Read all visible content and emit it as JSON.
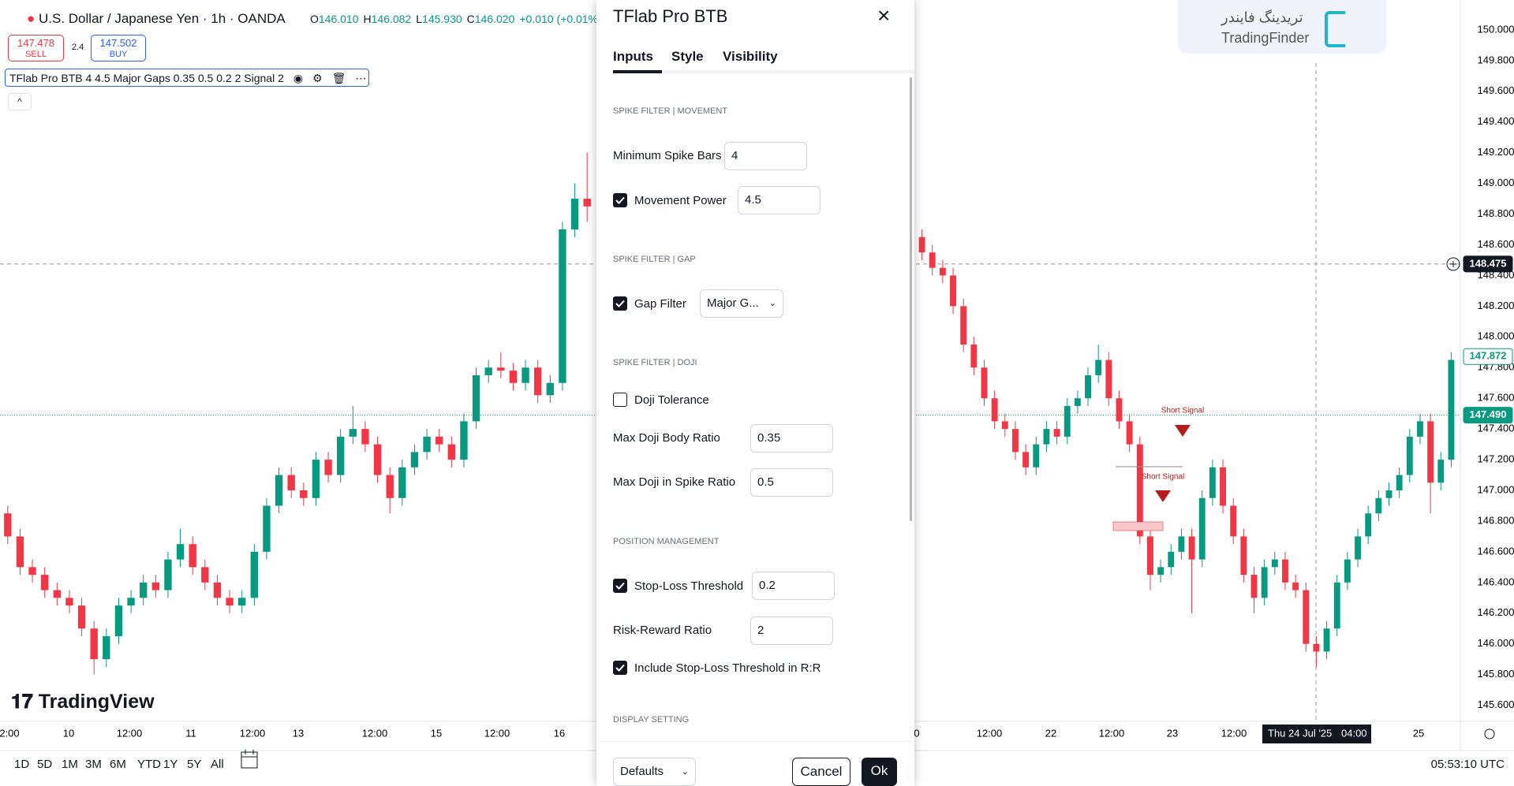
{
  "header": {
    "symbol": "U.S. Dollar / Japanese Yen · 1h · OANDA",
    "ohlc": [
      {
        "k": "O",
        "v": "146.010"
      },
      {
        "k": "H",
        "v": "146.082"
      },
      {
        "k": "L",
        "v": "145.930"
      },
      {
        "k": "C",
        "v": "146.020"
      }
    ],
    "change": "+0.010 (+0.01%)",
    "sell_price": "147.478",
    "sell_label": "SELL",
    "spread": "2.4",
    "buy_price": "147.502",
    "buy_label": "BUY",
    "indicator": "TFlab Pro BTB 4 4.5 Major Gaps 0.35 0.5 0.2 2 Signal 2"
  },
  "watermark": "TradingView",
  "logo": {
    "name": "TradingFinder",
    "name_fa": "تریدینگ فایندر"
  },
  "chart": {
    "price_ticks": [
      {
        "value": 150,
        "label": "150.000"
      },
      {
        "value": 149.8,
        "label": "149.800"
      },
      {
        "value": 149.6,
        "label": "149.600"
      },
      {
        "value": 149.4,
        "label": "149.400"
      },
      {
        "value": 149.2,
        "label": "149.200"
      },
      {
        "value": 149,
        "label": "149.000"
      },
      {
        "value": 148.8,
        "label": "148.800"
      },
      {
        "value": 148.6,
        "label": "148.600"
      },
      {
        "value": 148.4,
        "label": "148.400"
      },
      {
        "value": 148.2,
        "label": "148.200"
      },
      {
        "value": 148,
        "label": "148.000"
      },
      {
        "value": 147.8,
        "label": "147.800"
      },
      {
        "value": 147.6,
        "label": "147.600"
      },
      {
        "value": 147.4,
        "label": "147.400"
      },
      {
        "value": 147.2,
        "label": "147.200"
      },
      {
        "value": 147,
        "label": "147.000"
      },
      {
        "value": 146.8,
        "label": "146.800"
      },
      {
        "value": 146.6,
        "label": "146.600"
      },
      {
        "value": 146.4,
        "label": "146.400"
      },
      {
        "value": 146.2,
        "label": "146.200"
      },
      {
        "value": 146,
        "label": "146.000"
      },
      {
        "value": 145.8,
        "label": "145.800"
      },
      {
        "value": 145.6,
        "label": "145.600"
      }
    ],
    "crosshair_price": {
      "value": 148.475,
      "label": "148.475"
    },
    "ask_price": {
      "value": 147.872,
      "label": "147.872"
    },
    "last_price": {
      "value": 147.49,
      "label": "147.490"
    },
    "time_labels_left": [
      "2:00",
      "10",
      "12:00",
      "11",
      "12:00",
      "13",
      "12:00",
      "15",
      "12:00",
      "16"
    ],
    "time_labels_right": [
      "0",
      "12:00",
      "22",
      "12:00",
      "23",
      "12:00",
      "25"
    ],
    "crosshair_time": {
      "date": "Thu 24 Jul '25",
      "time": "04:00"
    },
    "signals": [
      "Short Signal",
      "Short Signal"
    ],
    "up_color": "#089981",
    "down_color": "#f23645",
    "left_candles": [
      [
        146.85,
        146.9,
        146.65,
        146.7
      ],
      [
        146.7,
        146.75,
        146.45,
        146.5
      ],
      [
        146.5,
        146.55,
        146.4,
        146.45
      ],
      [
        146.45,
        146.5,
        146.3,
        146.35
      ],
      [
        146.35,
        146.4,
        146.25,
        146.3
      ],
      [
        146.3,
        146.35,
        146.2,
        146.25
      ],
      [
        146.25,
        146.3,
        146.05,
        146.1
      ],
      [
        146.1,
        146.15,
        145.8,
        145.9
      ],
      [
        145.9,
        146.1,
        145.85,
        146.05
      ],
      [
        146.05,
        146.3,
        146.0,
        146.25
      ],
      [
        146.25,
        146.35,
        146.2,
        146.3
      ],
      [
        146.3,
        146.45,
        146.25,
        146.4
      ],
      [
        146.4,
        146.45,
        146.3,
        146.35
      ],
      [
        146.35,
        146.6,
        146.3,
        146.55
      ],
      [
        146.55,
        146.75,
        146.5,
        146.65
      ],
      [
        146.65,
        146.7,
        146.45,
        146.5
      ],
      [
        146.5,
        146.55,
        146.35,
        146.4
      ],
      [
        146.4,
        146.45,
        146.25,
        146.3
      ],
      [
        146.3,
        146.35,
        146.2,
        146.25
      ],
      [
        146.25,
        146.35,
        146.2,
        146.3
      ],
      [
        146.3,
        146.65,
        146.25,
        146.6
      ],
      [
        146.6,
        146.95,
        146.55,
        146.9
      ],
      [
        146.9,
        147.15,
        146.85,
        147.1
      ],
      [
        147.1,
        147.15,
        146.95,
        147.0
      ],
      [
        147.0,
        147.05,
        146.9,
        146.95
      ],
      [
        146.95,
        147.25,
        146.9,
        147.2
      ],
      [
        147.2,
        147.25,
        147.05,
        147.1
      ],
      [
        147.1,
        147.4,
        147.05,
        147.35
      ],
      [
        147.35,
        147.55,
        147.3,
        147.4
      ],
      [
        147.4,
        147.45,
        147.25,
        147.3
      ],
      [
        147.3,
        147.35,
        147.05,
        147.1
      ],
      [
        147.1,
        147.15,
        146.85,
        146.95
      ],
      [
        146.95,
        147.2,
        146.9,
        147.15
      ],
      [
        147.15,
        147.3,
        147.1,
        147.25
      ],
      [
        147.25,
        147.4,
        147.2,
        147.35
      ],
      [
        147.35,
        147.4,
        147.25,
        147.3
      ],
      [
        147.3,
        147.35,
        147.15,
        147.2
      ],
      [
        147.2,
        147.5,
        147.15,
        147.45
      ],
      [
        147.45,
        147.8,
        147.4,
        147.75
      ],
      [
        147.75,
        147.85,
        147.7,
        147.8
      ],
      [
        147.8,
        147.9,
        147.73,
        147.78
      ],
      [
        147.78,
        147.83,
        147.65,
        147.7
      ],
      [
        147.7,
        147.85,
        147.65,
        147.8
      ],
      [
        147.8,
        147.85,
        147.57,
        147.62
      ],
      [
        147.62,
        147.75,
        147.57,
        147.7
      ],
      [
        147.7,
        148.75,
        147.65,
        148.7
      ],
      [
        148.7,
        149.0,
        148.65,
        148.9
      ],
      [
        148.9,
        149.2,
        148.75,
        148.85
      ]
    ],
    "right_candles": [
      [
        148.65,
        148.7,
        148.5,
        148.55
      ],
      [
        148.55,
        148.6,
        148.4,
        148.45
      ],
      [
        148.45,
        148.5,
        148.35,
        148.4
      ],
      [
        148.4,
        148.45,
        148.15,
        148.2
      ],
      [
        148.2,
        148.25,
        147.9,
        147.95
      ],
      [
        147.95,
        148.0,
        147.75,
        147.8
      ],
      [
        147.8,
        147.85,
        147.55,
        147.6
      ],
      [
        147.6,
        147.65,
        147.4,
        147.45
      ],
      [
        147.45,
        147.5,
        147.35,
        147.4
      ],
      [
        147.4,
        147.45,
        147.2,
        147.25
      ],
      [
        147.25,
        147.3,
        147.1,
        147.15
      ],
      [
        147.15,
        147.35,
        147.1,
        147.3
      ],
      [
        147.3,
        147.45,
        147.25,
        147.4
      ],
      [
        147.4,
        147.45,
        147.3,
        147.35
      ],
      [
        147.35,
        147.6,
        147.3,
        147.55
      ],
      [
        147.55,
        147.65,
        147.5,
        147.6
      ],
      [
        147.6,
        147.8,
        147.55,
        147.75
      ],
      [
        147.75,
        147.95,
        147.7,
        147.85
      ],
      [
        147.85,
        147.9,
        147.55,
        147.6
      ],
      [
        147.6,
        147.65,
        147.4,
        147.45
      ],
      [
        147.45,
        147.5,
        147.25,
        147.3
      ],
      [
        147.3,
        147.35,
        146.65,
        146.7
      ],
      [
        146.7,
        146.75,
        146.35,
        146.45
      ],
      [
        146.45,
        146.55,
        146.4,
        146.5
      ],
      [
        146.5,
        146.65,
        146.45,
        146.6
      ],
      [
        146.6,
        146.75,
        146.55,
        146.7
      ],
      [
        146.7,
        146.75,
        146.2,
        146.55
      ],
      [
        146.55,
        147.0,
        146.5,
        146.95
      ],
      [
        146.95,
        147.2,
        146.9,
        147.15
      ],
      [
        147.15,
        147.2,
        146.85,
        146.9
      ],
      [
        146.9,
        146.95,
        146.65,
        146.7
      ],
      [
        146.7,
        146.75,
        146.4,
        146.45
      ],
      [
        146.45,
        146.5,
        146.2,
        146.3
      ],
      [
        146.3,
        146.55,
        146.25,
        146.5
      ],
      [
        146.5,
        146.6,
        146.45,
        146.55
      ],
      [
        146.55,
        146.6,
        146.35,
        146.4
      ],
      [
        146.4,
        146.45,
        146.3,
        146.35
      ],
      [
        146.35,
        146.4,
        145.95,
        146.0
      ],
      [
        146.0,
        146.05,
        145.85,
        145.95
      ],
      [
        145.95,
        146.15,
        145.9,
        146.1
      ],
      [
        146.1,
        146.45,
        146.05,
        146.4
      ],
      [
        146.4,
        146.6,
        146.35,
        146.55
      ],
      [
        146.55,
        146.75,
        146.5,
        146.7
      ],
      [
        146.7,
        146.9,
        146.65,
        146.85
      ],
      [
        146.85,
        147.0,
        146.8,
        146.95
      ],
      [
        146.95,
        147.05,
        146.9,
        147.0
      ],
      [
        147.0,
        147.15,
        146.95,
        147.1
      ],
      [
        147.1,
        147.4,
        147.05,
        147.35
      ],
      [
        147.35,
        147.5,
        147.3,
        147.45
      ],
      [
        147.45,
        147.5,
        146.85,
        147.05
      ],
      [
        147.05,
        147.25,
        147.0,
        147.2
      ],
      [
        147.2,
        147.9,
        147.15,
        147.85
      ]
    ]
  },
  "toolbar": {
    "ranges": [
      "1D",
      "5D",
      "1M",
      "3M",
      "6M",
      "YTD",
      "1Y",
      "5Y",
      "All"
    ],
    "clock": "05:53:10 UTC"
  },
  "dialog": {
    "title": "TFlab Pro BTB",
    "tabs": [
      "Inputs",
      "Style",
      "Visibility"
    ],
    "sections": [
      {
        "heading": "SPIKE FILTER | MOVEMENT",
        "fields": [
          {
            "label": "Minimum Spike Bars",
            "value": "4"
          },
          {
            "label": "Movement Power",
            "value": "4.5",
            "checked": true
          }
        ]
      },
      {
        "heading": "SPIKE FILTER | GAP",
        "fields": [
          {
            "label": "Gap Filter",
            "value": "Major G...",
            "checked": true
          }
        ]
      },
      {
        "heading": "SPIKE FILTER | DOJI",
        "fields": [
          {
            "label": "Doji Tolerance",
            "checked": false
          },
          {
            "label": "Max Doji Body Ratio",
            "value": "0.35"
          },
          {
            "label": "Max Doji in Spike Ratio",
            "value": "0.5"
          }
        ]
      },
      {
        "heading": "POSITION MANAGEMENT",
        "fields": [
          {
            "label": "Stop-Loss Threshold",
            "value": "0.2",
            "checked": true
          },
          {
            "label": "Risk-Reward Ratio",
            "value": "2"
          },
          {
            "label": "Include Stop-Loss Threshold in R:R",
            "checked": true
          }
        ]
      },
      {
        "heading": "DISPLAY SETTING",
        "fields": []
      }
    ],
    "defaults": "Defaults",
    "cancel": "Cancel",
    "ok": "Ok"
  }
}
